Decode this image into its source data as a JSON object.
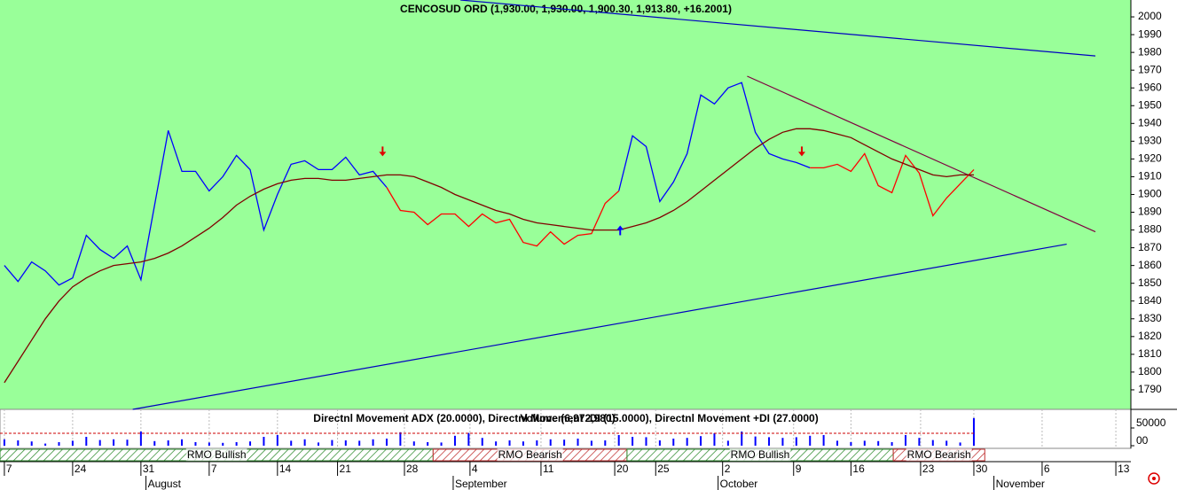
{
  "chart_data": {
    "type": "line",
    "title": "CENCOSUD ORD (1,930.00, 1,930.00, 1,900.30, 1,913.80, +16.2001)",
    "x": [
      0,
      1,
      2,
      3,
      4,
      5,
      6,
      7,
      8,
      9,
      10,
      11,
      12,
      13,
      14,
      15,
      16,
      17,
      18,
      19,
      20,
      21,
      22,
      23,
      24,
      25,
      26,
      27,
      28,
      29,
      30,
      31,
      32,
      33,
      34,
      35,
      36,
      37,
      38,
      39,
      40,
      41,
      42,
      43,
      44,
      45,
      46,
      47,
      48,
      49,
      50,
      51,
      52,
      53,
      54,
      55,
      56,
      57,
      58,
      59,
      60,
      61,
      62,
      63,
      64,
      65,
      66,
      67,
      68,
      69,
      70,
      71
    ],
    "series": [
      {
        "color": "#0000ff",
        "values": [
          1860,
          1851,
          1862,
          1857,
          1849,
          1853,
          1877,
          1869,
          1864,
          1871,
          1852,
          1894,
          1936,
          1913,
          1913,
          1902,
          1910,
          1922,
          1914,
          1880,
          1900,
          1917,
          1919,
          1914,
          1914,
          1921,
          1911,
          1913,
          1904,
          null,
          null,
          null,
          null,
          null,
          null,
          null,
          null,
          null,
          null,
          null,
          null,
          null,
          null,
          null,
          null,
          1902,
          1933,
          1927,
          1896,
          1907,
          1923,
          1956,
          1951,
          1960,
          1963,
          1935,
          1923,
          1920,
          1918,
          1915,
          null,
          null,
          null,
          null,
          null,
          null,
          null,
          null,
          null,
          null,
          null,
          null
        ]
      },
      {
        "color": "#ff0000",
        "values": [
          null,
          null,
          null,
          null,
          null,
          null,
          null,
          null,
          null,
          null,
          null,
          null,
          null,
          null,
          null,
          null,
          null,
          null,
          null,
          null,
          null,
          null,
          null,
          null,
          null,
          null,
          null,
          null,
          1904,
          1891,
          1890,
          1883,
          1889,
          1889,
          1882,
          1889,
          1884,
          1886,
          1873,
          1871,
          1879,
          1872,
          1877,
          1878,
          1895,
          1902,
          null,
          null,
          null,
          null,
          null,
          null,
          null,
          null,
          null,
          null,
          null,
          null,
          null,
          1915,
          1915,
          1917,
          1913,
          1923,
          1905,
          1901,
          1922,
          1912,
          1888,
          1898,
          1906,
          1914
        ]
      },
      {
        "color": "#800000",
        "values": [
          1794,
          1806,
          1818,
          1830,
          1840,
          1848,
          1853,
          1857,
          1860,
          1861,
          1862,
          1864,
          1867,
          1871,
          1876,
          1881,
          1887,
          1894,
          1899,
          1903,
          1906,
          1908,
          1909,
          1909,
          1908,
          1908,
          1909,
          1910,
          1911,
          1911,
          1910,
          1907,
          1904,
          1900,
          1897,
          1894,
          1891,
          1889,
          1886,
          1884,
          1883,
          1882,
          1881,
          1880,
          1880,
          1880,
          1882,
          1884,
          1887,
          1891,
          1896,
          1902,
          1908,
          1914,
          1920,
          1926,
          1931,
          1935,
          1937,
          1937,
          1936,
          1934,
          1932,
          1928,
          1924,
          1920,
          1917,
          1914,
          1911,
          1910,
          1911,
          1911
        ]
      }
    ],
    "trendlines": [
      {
        "color": "#0000c0",
        "x": [
          33.4,
          79.9
        ],
        "y": [
          2009.5,
          1978
        ]
      },
      {
        "color": "#0000c0",
        "x": [
          9.4,
          77.8
        ],
        "y": [
          1779,
          1872
        ]
      },
      {
        "color": "#800040",
        "x": [
          54.4,
          79.9
        ],
        "y": [
          1966.6,
          1879
        ]
      }
    ],
    "markers": [
      {
        "x": 27.7,
        "y": 1924,
        "direction": "down",
        "color": "#e00000"
      },
      {
        "x": 45.1,
        "y": 1880,
        "direction": "up",
        "color": "#0000ff"
      },
      {
        "x": 58.4,
        "y": 1924,
        "direction": "down",
        "color": "#e00000"
      }
    ],
    "xlim": [
      -0.32,
      82.5
    ],
    "ylim": [
      1779,
      2009.5
    ],
    "yticks": [
      1790,
      1800,
      1810,
      1820,
      1830,
      1840,
      1850,
      1860,
      1870,
      1880,
      1890,
      1900,
      1910,
      1920,
      1930,
      1940,
      1950,
      1960,
      1970,
      1980,
      1990,
      2000
    ],
    "xticks": [
      {
        "value": 0,
        "label": "7"
      },
      {
        "value": 5,
        "label": "24"
      },
      {
        "value": 10,
        "label": "31"
      },
      {
        "value": 15,
        "label": "7"
      },
      {
        "value": 20,
        "label": "14"
      },
      {
        "value": 24.4,
        "label": "21"
      },
      {
        "value": 29.3,
        "label": "28"
      },
      {
        "value": 34.1,
        "label": "4"
      },
      {
        "value": 39.3,
        "label": "11"
      },
      {
        "value": 44.7,
        "label": "20"
      },
      {
        "value": 47.7,
        "label": "25"
      },
      {
        "value": 52.6,
        "label": "2"
      },
      {
        "value": 57.8,
        "label": "9"
      },
      {
        "value": 62,
        "label": "16"
      },
      {
        "value": 67.1,
        "label": "23"
      },
      {
        "value": 71,
        "label": "30"
      },
      {
        "value": 76,
        "label": "6"
      },
      {
        "value": 81.4,
        "label": "13"
      }
    ],
    "month_ticks": [
      {
        "value": 10.5,
        "label": "August"
      },
      {
        "value": 33,
        "label": "September"
      },
      {
        "value": 52.4,
        "label": "October"
      },
      {
        "value": 72.6,
        "label": "November"
      }
    ],
    "volume": {
      "title": "Directnl Movement ADX (20.0000), Directnl Movement -DI (15.0000), Directnl Movement +DI (27.0000)",
      "overlay_label": "Volume (6,972,980)",
      "color": "#0000ff",
      "values": [
        18000,
        15000,
        12000,
        6000,
        10000,
        14000,
        25000,
        16000,
        18000,
        17000,
        40000,
        13000,
        15000,
        18000,
        10000,
        9000,
        8000,
        10000,
        12000,
        25000,
        30000,
        14000,
        18000,
        9000,
        16000,
        15000,
        14000,
        18000,
        20000,
        38000,
        12000,
        10000,
        9000,
        28000,
        36000,
        22000,
        12000,
        15000,
        12000,
        15000,
        18000,
        17000,
        20000,
        14000,
        15000,
        30000,
        25000,
        24000,
        15000,
        20000,
        22000,
        27000,
        35000,
        14000,
        40000,
        26000,
        24000,
        22000,
        24000,
        28000,
        30000,
        14000,
        10000,
        14000,
        13000,
        10000,
        30000,
        22000,
        16000,
        14000,
        9000,
        78000
      ],
      "average": 35000,
      "average_color": "#cc0000",
      "ylim": [
        0,
        95000
      ],
      "yticks": [
        50000,
        {
          "value": 0,
          "label": "00"
        }
      ]
    },
    "rmo": [
      {
        "label": "RMO Bullish",
        "start": -0.32,
        "end": 31.4,
        "color": "#2e8b2e"
      },
      {
        "label": "RMO Bearish",
        "start": 31.4,
        "end": 45.6,
        "color": "#c03030"
      },
      {
        "label": "RMO Bullish",
        "start": 45.6,
        "end": 65.1,
        "color": "#2e8b2e"
      },
      {
        "label": "RMO Bearish",
        "start": 65.1,
        "end": 71.8,
        "color": "#c03030"
      }
    ]
  }
}
